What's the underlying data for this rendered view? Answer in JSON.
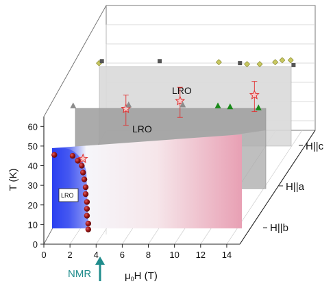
{
  "chart_data": {
    "type": "scatter",
    "subtype": "3d-phase-diagram",
    "xlabel_prefix": "μ",
    "xlabel_sub": "0",
    "xlabel_suffix": "H (T)",
    "ylabel": "T (K)",
    "xlim": [
      0,
      15
    ],
    "ylim": [
      0,
      65
    ],
    "x_ticks": [
      "0",
      "2",
      "4",
      "6",
      "8",
      "10",
      "12",
      "14"
    ],
    "y_ticks": [
      "0",
      "10",
      "20",
      "30",
      "40",
      "50",
      "60"
    ],
    "depth_planes": [
      "H||b",
      "H||a",
      "H||c"
    ],
    "regions": [
      {
        "plane": "H||b",
        "label": "LRO"
      },
      {
        "plane": "H||a",
        "label": "LRO"
      },
      {
        "plane": "H||c",
        "label": "LRO"
      }
    ],
    "annotation": {
      "label": "NMR",
      "x": 4.4
    },
    "colors": {
      "lro_low_field": "#2a3ff0",
      "lro_high_field": "#e8a0b4",
      "star": "#e03030",
      "sphere": "#8b1010",
      "triangle_green": "#1a8a1a",
      "triangle_gray": "#8c8c8c",
      "diamond": "#c8c860",
      "square": "#555555"
    },
    "series": [
      {
        "plane": "H||b",
        "marker": "sphere",
        "points": [
          [
            0.8,
            45.5
          ],
          [
            2.2,
            45.0
          ],
          [
            2.6,
            42.5
          ],
          [
            2.9,
            40
          ],
          [
            3.0,
            36.5
          ],
          [
            3.1,
            33
          ],
          [
            3.2,
            29
          ],
          [
            3.2,
            25.5
          ],
          [
            3.3,
            21.5
          ],
          [
            3.3,
            18
          ],
          [
            3.3,
            14.5
          ],
          [
            3.4,
            10.5
          ],
          [
            3.4,
            7.5
          ]
        ]
      },
      {
        "plane": "H||b",
        "marker": "star",
        "points": [
          [
            3.0,
            43.5
          ]
        ]
      },
      {
        "plane": "H||a",
        "marker": "star",
        "error_bars": true,
        "points": [
          [
            4.7,
            44.5
          ],
          [
            8.7,
            48.5
          ],
          [
            14.2,
            51.5
          ]
        ]
      },
      {
        "plane": "H||a",
        "marker": "triangle",
        "points": [
          [
            0.8,
            46
          ],
          [
            4.9,
            46.5
          ],
          [
            8.9,
            46.5
          ],
          [
            11.5,
            46
          ],
          [
            12.4,
            45.5
          ],
          [
            14.5,
            45
          ]
        ]
      },
      {
        "plane": "H||c",
        "marker": "diamond",
        "points": [
          [
            1.0,
            47.5
          ],
          [
            9.5,
            48
          ],
          [
            11.5,
            47
          ],
          [
            12.4,
            47
          ],
          [
            13.5,
            48
          ],
          [
            14.0,
            49
          ],
          [
            14.6,
            49
          ]
        ]
      },
      {
        "plane": "H||c",
        "marker": "square",
        "points": [
          [
            1.2,
            48.5
          ],
          [
            5.3,
            48.5
          ],
          [
            11.0,
            47.5
          ],
          [
            14.8,
            46.5
          ]
        ]
      }
    ]
  }
}
